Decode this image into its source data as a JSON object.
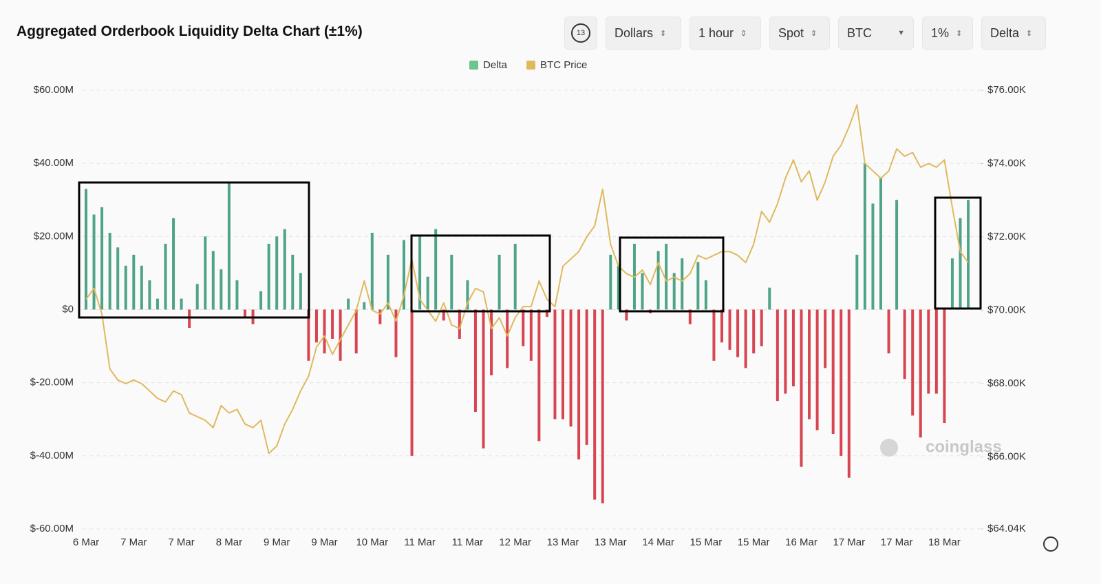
{
  "title": "Aggregated Orderbook Liquidity Delta Chart (±1%)",
  "toolbar": {
    "icon": "13",
    "buttons": [
      "Dollars",
      "1 hour",
      "Spot",
      "BTC",
      "1%",
      "Delta"
    ]
  },
  "watermark": "coinglass",
  "chart_data": {
    "type": "bar-line",
    "categories": [
      "6 Mar",
      null,
      null,
      null,
      null,
      null,
      "7 Mar",
      null,
      null,
      null,
      null,
      null,
      "7 Mar",
      null,
      null,
      null,
      null,
      null,
      "8 Mar",
      null,
      null,
      null,
      null,
      null,
      "9 Mar",
      null,
      null,
      null,
      null,
      null,
      "9 Mar",
      null,
      null,
      null,
      null,
      null,
      "10 Mar",
      null,
      null,
      null,
      null,
      null,
      "11 Mar",
      null,
      null,
      null,
      null,
      null,
      "11 Mar",
      null,
      null,
      null,
      null,
      null,
      "12 Mar",
      null,
      null,
      null,
      null,
      null,
      "13 Mar",
      null,
      null,
      null,
      null,
      null,
      "13 Mar",
      null,
      null,
      null,
      null,
      null,
      "14 Mar",
      null,
      null,
      null,
      null,
      null,
      "15 Mar",
      null,
      null,
      null,
      null,
      null,
      "15 Mar",
      null,
      null,
      null,
      null,
      null,
      "16 Mar",
      null,
      null,
      null,
      null,
      null,
      "17 Mar",
      null,
      null,
      null,
      null,
      null,
      "17 Mar",
      null,
      null,
      null,
      null,
      null,
      "18 Mar",
      null,
      null,
      null
    ],
    "series": [
      {
        "name": "Delta",
        "color": "#6cc58c",
        "positive_color": "#4fa386",
        "negative_color": "#d64550",
        "values": [
          33000000,
          26000000,
          28000000,
          21000000,
          17000000,
          12000000,
          15000000,
          12000000,
          8000000,
          3000000,
          18000000,
          25000000,
          3000000,
          -5000000,
          7000000,
          20000000,
          16000000,
          11000000,
          35000000,
          8000000,
          -2000000,
          -4000000,
          5000000,
          18000000,
          20000000,
          22000000,
          15000000,
          10000000,
          -14000000,
          -9000000,
          -12000000,
          -8000000,
          -14000000,
          3000000,
          -12000000,
          2000000,
          21000000,
          -4000000,
          15000000,
          -13000000,
          19000000,
          -40000000,
          20000000,
          9000000,
          22000000,
          -3000000,
          15000000,
          -8000000,
          8000000,
          -28000000,
          -38000000,
          -18000000,
          15000000,
          -16000000,
          18000000,
          -10000000,
          -14000000,
          -36000000,
          -2000000,
          -30000000,
          -30000000,
          -32000000,
          -41000000,
          -37000000,
          -52000000,
          -53000000,
          15000000,
          12000000,
          -3000000,
          18000000,
          10000000,
          -1000000,
          16000000,
          18000000,
          10000000,
          14000000,
          -4000000,
          13000000,
          8000000,
          -14000000,
          -9000000,
          -11000000,
          -13000000,
          -16000000,
          -12000000,
          -10000000,
          6000000,
          -25000000,
          -23000000,
          -21000000,
          -43000000,
          -30000000,
          -33000000,
          -16000000,
          -34000000,
          -40000000,
          -46000000,
          15000000,
          40000000,
          29000000,
          36000000,
          -12000000,
          30000000,
          -19000000,
          -29000000,
          -35000000,
          -23000000,
          -23000000,
          -31000000,
          14000000,
          25000000,
          30000000
        ]
      },
      {
        "name": "BTC Price",
        "color": "#dfb95c",
        "axis": "y2",
        "values": [
          70300,
          70600,
          69900,
          68400,
          68100,
          68000,
          68100,
          68000,
          67800,
          67600,
          67500,
          67800,
          67700,
          67200,
          67100,
          67000,
          66800,
          67400,
          67200,
          67300,
          66900,
          66800,
          67000,
          66100,
          66300,
          66900,
          67300,
          67800,
          68200,
          69000,
          69300,
          68800,
          69200,
          69600,
          70000,
          70800,
          70000,
          69900,
          70200,
          69700,
          70400,
          71400,
          70300,
          70000,
          69700,
          70200,
          69600,
          69500,
          70200,
          70600,
          70500,
          69500,
          69800,
          69300,
          69800,
          70100,
          70100,
          70800,
          70300,
          70100,
          71200,
          71400,
          71600,
          72000,
          72300,
          73300,
          71800,
          71200,
          71000,
          70900,
          71100,
          70700,
          71300,
          70800,
          70900,
          70800,
          71000,
          71500,
          71400,
          71500,
          71600,
          71600,
          71500,
          71300,
          71800,
          72700,
          72400,
          72900,
          73600,
          74100,
          73500,
          73800,
          73000,
          73500,
          74200,
          74500,
          75000,
          75600,
          74000,
          73800,
          73600,
          73800,
          74400,
          74200,
          74300,
          73900,
          74000,
          73900,
          74100,
          72800,
          71600,
          71300
        ]
      }
    ],
    "ylim": [
      -60000000,
      60000000
    ],
    "yticks": [
      {
        "value": -60000000,
        "label": "$-60.00M"
      },
      {
        "value": -40000000,
        "label": "$-40.00M"
      },
      {
        "value": -20000000,
        "label": "$-20.00M"
      },
      {
        "value": 0,
        "label": "$0"
      },
      {
        "value": 20000000,
        "label": "$20.00M"
      },
      {
        "value": 40000000,
        "label": "$40.00M"
      },
      {
        "value": 60000000,
        "label": "$60.00M"
      }
    ],
    "y2lim": [
      64040,
      76000
    ],
    "y2ticks": [
      {
        "value": 64040,
        "label": "$64.04K"
      },
      {
        "value": 66000,
        "label": "$66.00K"
      },
      {
        "value": 68000,
        "label": "$68.00K"
      },
      {
        "value": 70000,
        "label": "$70.00K"
      },
      {
        "value": 72000,
        "label": "$72.00K"
      },
      {
        "value": 74000,
        "label": "$74.00K"
      },
      {
        "value": 76000,
        "label": "$76.00K"
      }
    ],
    "grid": true
  }
}
